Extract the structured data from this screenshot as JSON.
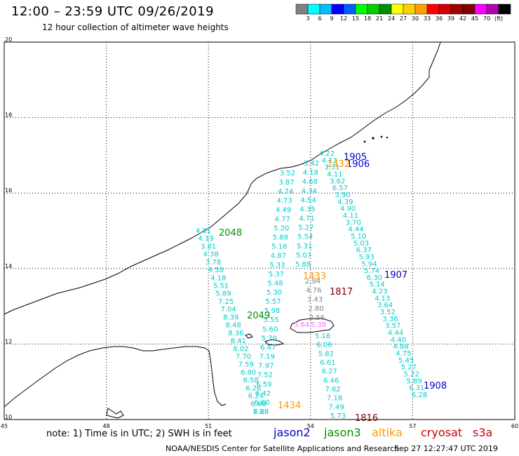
{
  "header": {
    "title": "12:00 – 23:59 UTC 09/26/2019",
    "subtitle": "12 hour collection of altimeter wave heights"
  },
  "colorbar": {
    "colors": [
      "#808080",
      "#00ffff",
      "#00bfff",
      "#0000ff",
      "#0060ff",
      "#00ff00",
      "#00d000",
      "#009000",
      "#ffff00",
      "#ffd000",
      "#ffa000",
      "#ff0000",
      "#d00000",
      "#a00000",
      "#800000",
      "#ff00ff",
      "#b000b0",
      "#000000"
    ],
    "labels": [
      "3",
      "6",
      "9",
      "12",
      "15",
      "18",
      "21",
      "24",
      "27",
      "30",
      "33",
      "36",
      "39",
      "42",
      "45",
      "70",
      "(ft)"
    ]
  },
  "map": {
    "lon_range": [
      45,
      60
    ],
    "lat_range": [
      10,
      20
    ],
    "lon_ticks": [
      "45",
      "48",
      "51",
      "54",
      "57",
      "60"
    ],
    "lat_ticks": [
      "20",
      "18",
      "16",
      "14",
      "12",
      "10"
    ]
  },
  "passes": [
    {
      "sat": "jason2",
      "label": "1905",
      "color": "#0000cc"
    },
    {
      "sat": "jason2",
      "label": "1906",
      "color": "#0000cc"
    },
    {
      "sat": "jason2",
      "label": "1907",
      "color": "#0000cc"
    },
    {
      "sat": "jason2",
      "label": "1908",
      "color": "#0000cc"
    },
    {
      "sat": "jason3",
      "label": "2048",
      "color": "#009000"
    },
    {
      "sat": "jason3",
      "label": "2049",
      "color": "#009000"
    },
    {
      "sat": "altika",
      "label": "1432",
      "color": "#ff9900"
    },
    {
      "sat": "altika",
      "label": "1433",
      "color": "#ff9900"
    },
    {
      "sat": "altika",
      "label": "1434",
      "color": "#ff9900"
    },
    {
      "sat": "cryosat",
      "label": "1817",
      "color": "#800000"
    },
    {
      "sat": "cryosat",
      "label": "1816",
      "color": "#800000"
    }
  ],
  "tracks": [
    {
      "values": [
        "4.81",
        "4.19",
        "3.81",
        "4.38",
        "3.78",
        "4.58",
        "4.18",
        "5.51",
        "5.89",
        "7.25",
        "7.04",
        "8.39",
        "8.48",
        "8.36",
        "8.41",
        "8.02",
        "7.70",
        "7.59",
        "6.80",
        "6.58",
        "6.26",
        "6.24",
        "6.80",
        "7.68"
      ],
      "color": "#00cccc"
    },
    {
      "values": [
        "3.52",
        "3.87",
        "4.74",
        "4.73",
        "4.49",
        "4.77",
        "5.20",
        "5.88",
        "5.16",
        "4.87",
        "5.33",
        "5.37",
        "5.48",
        "5.30",
        "5.57",
        "5.98",
        "5.55",
        "5.60",
        "5.79",
        "6.47",
        "7.19",
        "7.97",
        "7.52",
        "6.59",
        "6.42",
        "6.80",
        "6.28"
      ],
      "color": "#00cccc"
    },
    {
      "values": [
        "3.42",
        "4.18",
        "4.68",
        "4.34",
        "4.54",
        "4.35",
        "4.71",
        "5.27",
        "5.54",
        "5.31",
        "5.07",
        "5.88"
      ],
      "color": "#00cccc"
    },
    {
      "values": [
        "4.22",
        "4.13",
        "3.31",
        "4.11",
        "3.62",
        "6.57",
        "3.90",
        "4.39",
        "4.90",
        "4.11",
        "3.70",
        "4.44",
        "5.10",
        "5.03",
        "6.37",
        "5.93",
        "5.94",
        "5.74",
        "6.30",
        "5.14",
        "4.23",
        "4.13",
        "3.64",
        "3.52",
        "3.36",
        "3.57",
        "4.44",
        "4.40",
        "4.88",
        "4.75",
        "5.45",
        "5.27",
        "5.22",
        "5.89",
        "6.31",
        "6.28"
      ],
      "color": "#00cccc"
    },
    {
      "values": [
        "2.94",
        "4.76",
        "3.43",
        "2.80",
        "2.56"
      ],
      "color": "#808080"
    },
    {
      "values": [
        "5.18",
        "6.06",
        "5.82",
        "6.61",
        "6.27",
        "6.46",
        "7.62",
        "7.18",
        "7.49",
        "5.73"
      ],
      "color": "#00cccc"
    },
    {
      "values": [
        "5.64",
        "5.38"
      ],
      "color": "#ff66ff"
    }
  ],
  "footer": {
    "note": "note: 1) Time is in UTC; 2) SWH is in feet",
    "satellites": [
      {
        "name": "jason2",
        "color": "#0000cc"
      },
      {
        "name": "jason3",
        "color": "#009000"
      },
      {
        "name": "altika",
        "color": "#ff9900"
      },
      {
        "name": "cryosat",
        "color": "#cc0000"
      },
      {
        "name": "s3a",
        "color": "#cc0000"
      }
    ],
    "credit": "NOAA/NESDIS Center for Satellite Applications and Research",
    "timestamp": "Sep 27 12:27:47 UTC 2019"
  }
}
